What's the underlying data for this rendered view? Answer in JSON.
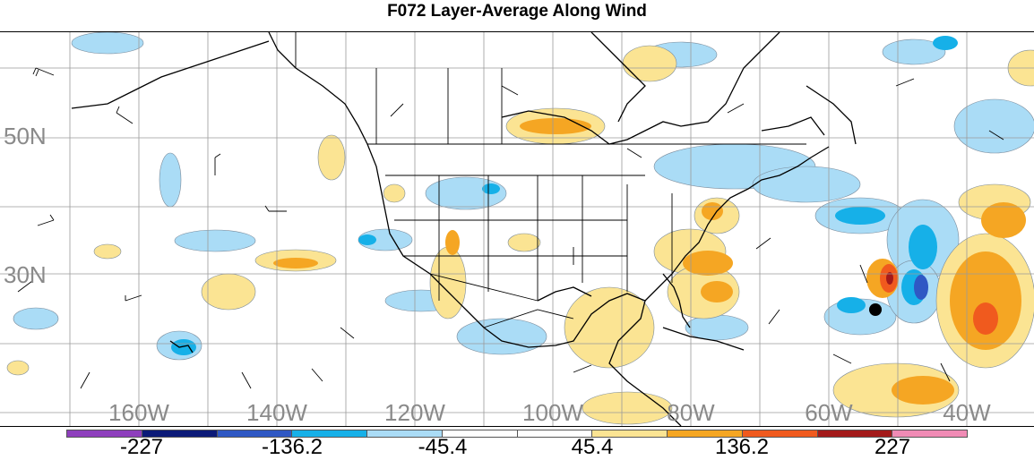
{
  "title": "F072 Layer-Average Along Wind",
  "lat_labels": [
    "50N",
    "30N"
  ],
  "lon_labels": [
    "160W",
    "140W",
    "120W",
    "100W",
    "80W",
    "60W",
    "40W"
  ],
  "colorbar": {
    "colors": [
      "#8e3fbd",
      "#0b1a78",
      "#2f58c4",
      "#16b0e8",
      "#aadcf6",
      "#ffffff",
      "#ffffff",
      "#fbe493",
      "#f5a623",
      "#f05a1e",
      "#a31a1a",
      "#f08bb5"
    ],
    "labels": [
      "-227",
      "-136.2",
      "-45.4",
      "45.4",
      "136.2",
      "227"
    ]
  },
  "marker": "storm-center"
}
